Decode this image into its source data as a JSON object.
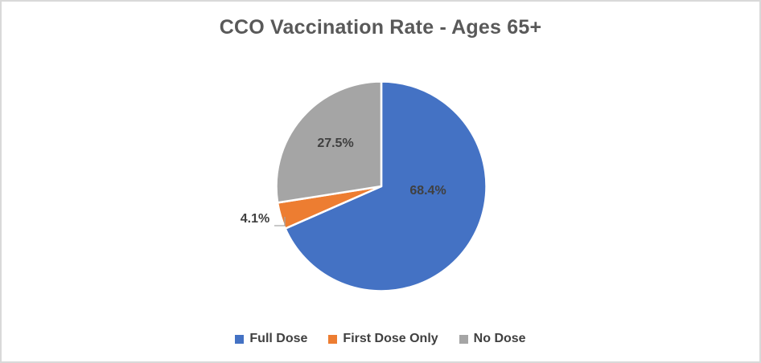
{
  "chart_data": {
    "type": "pie",
    "title": "CCO Vaccination Rate - Ages 65+",
    "slices": [
      {
        "label": "Full Dose",
        "value": 68.4,
        "data_label": "68.4%",
        "color": "#4472C4"
      },
      {
        "label": "First Dose Only",
        "value": 4.1,
        "data_label": "4.1%",
        "color": "#ED7D31"
      },
      {
        "label": "No Dose",
        "value": 27.5,
        "data_label": "27.5%",
        "color": "#A5A5A5"
      }
    ],
    "start_angle_deg": 0,
    "direction": "clockwise",
    "legend_position": "bottom",
    "legend_labels": [
      "Full Dose",
      "First Dose Only",
      "No Dose"
    ],
    "title_color": "#595959",
    "data_label_color": "#404040",
    "legend_text_color": "#404040",
    "slice_border_color": "#FFFFFF",
    "leader_line_color": "#A6A6A6",
    "chart_border_color": "#D9D9D9",
    "background": "#FFFFFF"
  }
}
